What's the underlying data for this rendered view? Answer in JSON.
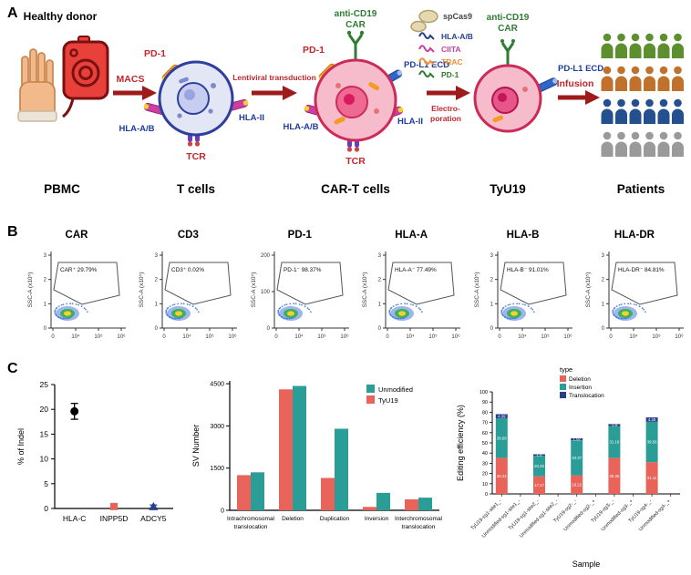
{
  "panel_a": {
    "label": "A",
    "donor_title": "Healthy donor",
    "stage_labels": [
      "PBMC",
      "T cells",
      "CAR-T cells",
      "TyU19",
      "Patients"
    ],
    "arrow_macs": "MACS",
    "arrow_lenti": "Lentiviral transduction",
    "arrow_electro_line1": "Electro-",
    "arrow_electro_line2": "poration",
    "arrow_infusion": "Infusion",
    "tcell": {
      "pd1": "PD-1",
      "hla_ab": "HLA-A/B",
      "hla_ii": "HLA-II",
      "tcr": "TCR"
    },
    "cart": {
      "car_line1": "anti-CD19",
      "car_line2": "CAR",
      "pd1": "PD-1",
      "pdl1": "PD-L1 ECD",
      "hla_ab": "HLA-A/B",
      "hla_ii": "HLA-II",
      "tcr": "TCR"
    },
    "rnp": {
      "cas9": "spCas9",
      "guides": [
        {
          "label": "HLA-A/B",
          "color": "#27408b"
        },
        {
          "label": "CIITA",
          "color": "#cc3fa0"
        },
        {
          "label": "TRAC",
          "color": "#f0902e"
        },
        {
          "label": "PD-1",
          "color": "#2e7d32"
        }
      ]
    },
    "tyu19": {
      "car_line1": "anti-CD19",
      "car_line2": "CAR",
      "pdl1": "PD-L1 ECD"
    },
    "patient_row_colors": [
      "#5d8f2f",
      "#c0712b",
      "#24508f",
      "#9a9a9a"
    ]
  },
  "panel_b": {
    "label": "B",
    "ylabel": "SSC-A (x10⁵)",
    "xticks": [
      "0",
      "10⁴",
      "10⁵",
      "10⁶"
    ],
    "plots": [
      {
        "title": "CAR",
        "gate_label": "CAR⁺ 29.79%",
        "yticks": [
          "0",
          "1",
          "2",
          "3"
        ]
      },
      {
        "title": "CD3",
        "gate_label": "CD3⁺ 0.02%",
        "yticks": [
          "0",
          "1",
          "2",
          "3"
        ]
      },
      {
        "title": "PD-1",
        "gate_label": "PD-1⁻ 98.37%",
        "yticks": [
          "0",
          "100",
          "200"
        ]
      },
      {
        "title": "HLA-A",
        "gate_label": "HLA-A⁻ 77.49%",
        "yticks": [
          "0",
          "1",
          "2",
          "3"
        ]
      },
      {
        "title": "HLA-B",
        "gate_label": "HLA-B⁻ 91.01%",
        "yticks": [
          "0",
          "1",
          "2",
          "3"
        ]
      },
      {
        "title": "HLA-DR",
        "gate_label": "HLA-DR⁻ 84.81%",
        "yticks": [
          "0",
          "1",
          "2",
          "3"
        ]
      }
    ]
  },
  "panel_c": {
    "label": "C"
  },
  "chart_data": [
    {
      "type": "scatter",
      "name": "indel-frequency",
      "ylabel": "% of Indel",
      "ylim": [
        0,
        25
      ],
      "yticks": [
        0,
        5,
        10,
        15,
        20,
        25
      ],
      "points": [
        {
          "label": "HLA-C",
          "value": 19.6,
          "error": 1.6,
          "color": "#000000",
          "marker": "circle"
        },
        {
          "label": "INPP5D",
          "value": 0.4,
          "error": 0.3,
          "color": "#e8635a",
          "marker": "square"
        },
        {
          "label": "ADCY5",
          "value": 0.4,
          "error": 0.3,
          "color": "#27408b",
          "marker": "triangle"
        }
      ]
    },
    {
      "type": "bar",
      "name": "sv-number",
      "ylabel": "SV Number",
      "ylim": [
        0,
        4600
      ],
      "yticks": [
        0,
        1500,
        3000,
        4500
      ],
      "categories": [
        "Intrachromosomal translocation",
        "Deletion",
        "Duplication",
        "Inversion",
        "Interchromosomal translocation"
      ],
      "series": [
        {
          "name": "TyU19",
          "color": "#e8635a",
          "values": [
            1250,
            4300,
            1150,
            120,
            390
          ]
        },
        {
          "name": "Unmodified",
          "color": "#2a9d96",
          "values": [
            1350,
            4420,
            2900,
            620,
            450
          ]
        }
      ],
      "legend_order": [
        "Unmodified",
        "TyU19"
      ]
    },
    {
      "type": "stacked-bar",
      "name": "editing-efficiency",
      "ylabel": "Editing efficiency (%)",
      "xlabel": "Sample",
      "ylim": [
        0,
        100
      ],
      "yticks": [
        0,
        10,
        20,
        30,
        40,
        50,
        60,
        70,
        80,
        90,
        100
      ],
      "legend_title": "type",
      "series": [
        {
          "name": "Deletion",
          "color": "#e8635a"
        },
        {
          "name": "Insertion",
          "color": "#2a9d96"
        },
        {
          "name": "Translocation",
          "color": "#27408b"
        }
      ],
      "categories": [
        "TyU19-sg1-site1_-",
        "Unmodified-sg1-site1_-",
        "TyU19-sg1-site2_-",
        "Unmodified-sg1-site2_-",
        "TyU19-sg2-_-",
        "Unmodified-sg2-_+",
        "TyU19-sg3-_-",
        "Unmodified-sg3-_+",
        "TyU19-sg4-_-",
        "Unmodified-sg4-_+"
      ],
      "values": [
        {
          "Deletion": 35.34,
          "Insertion": 38.68,
          "Translocation": 4.09
        },
        {
          "Deletion": 0,
          "Insertion": 0,
          "Translocation": 0
        },
        {
          "Deletion": 17.17,
          "Insertion": 20.26,
          "Translocation": 1.4
        },
        {
          "Deletion": 0,
          "Insertion": 0,
          "Translocation": 0
        },
        {
          "Deletion": 18.22,
          "Insertion": 34.37,
          "Translocation": 1.92
        },
        {
          "Deletion": 0,
          "Insertion": 0,
          "Translocation": 0
        },
        {
          "Deletion": 35.35,
          "Insertion": 31.19,
          "Translocation": 1.9
        },
        {
          "Deletion": 0,
          "Insertion": 0,
          "Translocation": 0
        },
        {
          "Deletion": 31.11,
          "Insertion": 39.56,
          "Translocation": 4.26
        },
        {
          "Deletion": 0,
          "Insertion": 0,
          "Translocation": 0
        }
      ]
    }
  ]
}
